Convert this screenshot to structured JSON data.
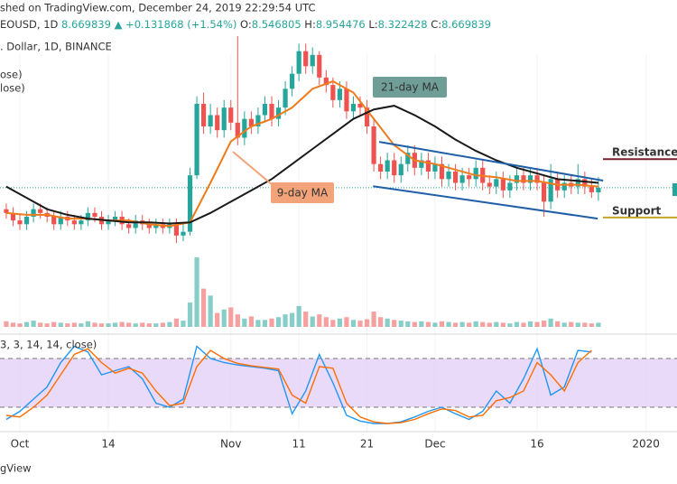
{
  "header": {
    "published": "shed on TradingView.com, December 24, 2019 22:29:54 UTC",
    "symbol": "EOUSD, 1D",
    "change": "▲ +0.131868 (+1.54%)",
    "o": "O:",
    "h": "H:",
    "l": "L:",
    "c": "C:",
    "description": ". Dollar, 1D, BINANCE",
    "indicator_labels": [
      "ose)",
      "lose)"
    ],
    "footer": "gView"
  },
  "chart_data": {
    "type": "candlestick",
    "up_color": "#26a69a",
    "down_color": "#ef5350",
    "xlim": [
      -2.92,
      96.55
    ],
    "ylim": [
      6.7,
      12.7
    ],
    "xticks": [
      {
        "value": 0,
        "label": "Oct"
      },
      {
        "value": 13,
        "label": "14"
      },
      {
        "value": 31,
        "label": "Nov"
      },
      {
        "value": 41,
        "label": "11"
      },
      {
        "value": 51,
        "label": "21"
      },
      {
        "value": 61,
        "label": "Dec"
      },
      {
        "value": 76,
        "label": "16"
      },
      {
        "value": 92,
        "label": "2020"
      }
    ],
    "x": [
      -2,
      -1,
      0,
      1,
      2,
      3,
      4,
      5,
      6,
      7,
      8,
      9,
      10,
      11,
      12,
      13,
      14,
      15,
      16,
      17,
      18,
      19,
      20,
      21,
      22,
      23,
      24,
      25,
      26,
      27,
      28,
      29,
      30,
      31,
      32,
      33,
      34,
      35,
      36,
      37,
      38,
      39,
      40,
      41,
      42,
      43,
      44,
      45,
      46,
      47,
      48,
      49,
      50,
      51,
      52,
      53,
      54,
      55,
      56,
      57,
      58,
      59,
      60,
      61,
      62,
      63,
      64,
      65,
      66,
      67,
      68,
      69,
      70,
      71,
      72,
      73,
      74,
      75,
      76,
      77,
      78,
      79,
      80,
      81,
      82,
      83,
      84,
      85
    ],
    "open": [
      8.1,
      8.0,
      7.8,
      7.7,
      7.9,
      8.1,
      8.0,
      7.9,
      7.7,
      7.9,
      7.8,
      7.7,
      7.8,
      8.0,
      7.9,
      7.7,
      7.8,
      7.9,
      7.7,
      7.6,
      7.8,
      7.7,
      7.6,
      7.7,
      7.6,
      7.7,
      7.4,
      7.5,
      9.0,
      10.9,
      10.3,
      10.6,
      10.2,
      10.8,
      10.4,
      10.0,
      10.5,
      10.3,
      10.6,
      10.9,
      10.5,
      10.8,
      11.3,
      11.7,
      12.3,
      11.9,
      12.2,
      11.6,
      11.4,
      11.0,
      11.3,
      10.7,
      10.9,
      10.8,
      10.3,
      9.3,
      9.1,
      9.4,
      9.0,
      9.3,
      9.6,
      9.2,
      9.4,
      9.1,
      9.3,
      8.9,
      9.1,
      8.8,
      9.0,
      8.9,
      9.2,
      8.8,
      8.7,
      8.9,
      8.6,
      8.8,
      9.0,
      8.8,
      9.0,
      8.8,
      8.3,
      8.9,
      8.6,
      8.8,
      8.7,
      8.9,
      8.7,
      8.546805
    ],
    "high": [
      8.25,
      8.15,
      7.95,
      8.05,
      8.25,
      8.25,
      8.15,
      8.05,
      8.05,
      8.05,
      7.95,
      7.95,
      8.15,
      8.15,
      8.05,
      7.95,
      8.05,
      8.05,
      7.85,
      7.95,
      7.95,
      7.85,
      7.85,
      7.85,
      7.85,
      7.85,
      7.7,
      9.2,
      11.1,
      11.2,
      10.9,
      10.8,
      11.0,
      11.0,
      12.7,
      10.7,
      10.7,
      10.8,
      11.1,
      11.1,
      11.0,
      11.5,
      11.9,
      12.5,
      12.5,
      12.4,
      12.3,
      11.8,
      11.6,
      11.5,
      11.5,
      11.1,
      11.1,
      11.0,
      10.5,
      9.5,
      9.6,
      9.6,
      9.5,
      9.8,
      9.8,
      9.6,
      9.6,
      9.5,
      9.5,
      9.3,
      9.3,
      9.2,
      9.2,
      9.4,
      9.4,
      9.0,
      9.1,
      9.1,
      9.0,
      9.2,
      9.2,
      9.2,
      9.2,
      9.0,
      9.3,
      9.1,
      9.0,
      9.0,
      9.3,
      9.1,
      8.9,
      8.954476
    ],
    "low": [
      7.85,
      7.65,
      7.55,
      7.55,
      7.75,
      7.85,
      7.75,
      7.55,
      7.55,
      7.65,
      7.55,
      7.55,
      7.65,
      7.75,
      7.55,
      7.55,
      7.65,
      7.55,
      7.45,
      7.45,
      7.55,
      7.45,
      7.45,
      7.45,
      7.45,
      7.2,
      7.25,
      7.4,
      8.9,
      10.1,
      10.1,
      10.0,
      10.0,
      10.2,
      9.8,
      9.8,
      10.1,
      10.1,
      10.4,
      10.3,
      10.3,
      10.6,
      11.1,
      11.5,
      11.7,
      11.7,
      11.4,
      11.2,
      10.8,
      10.8,
      10.5,
      10.5,
      10.6,
      10.1,
      9.1,
      8.9,
      8.9,
      8.8,
      8.8,
      9.1,
      9.0,
      9.0,
      8.9,
      8.9,
      8.7,
      8.7,
      8.6,
      8.6,
      8.7,
      8.7,
      8.6,
      8.5,
      8.5,
      8.4,
      8.4,
      8.6,
      8.6,
      8.6,
      8.6,
      7.9,
      8.1,
      8.4,
      8.4,
      8.5,
      8.5,
      8.5,
      8.4,
      8.322428
    ],
    "close": [
      8.0,
      7.8,
      7.7,
      7.9,
      8.1,
      8.0,
      7.9,
      7.7,
      7.9,
      7.8,
      7.7,
      7.8,
      8.0,
      7.9,
      7.7,
      7.8,
      7.9,
      7.7,
      7.6,
      7.8,
      7.7,
      7.6,
      7.7,
      7.6,
      7.7,
      7.4,
      7.5,
      9.0,
      10.9,
      10.3,
      10.6,
      10.2,
      10.8,
      10.4,
      10.0,
      10.5,
      10.3,
      10.6,
      10.9,
      10.5,
      10.8,
      11.3,
      11.7,
      12.3,
      11.9,
      12.2,
      11.6,
      11.4,
      11.0,
      11.3,
      10.7,
      10.9,
      10.8,
      10.3,
      9.3,
      9.1,
      9.4,
      9.0,
      9.3,
      9.6,
      9.2,
      9.4,
      9.1,
      9.3,
      8.9,
      9.1,
      8.8,
      9.0,
      8.9,
      9.2,
      8.8,
      8.7,
      8.9,
      8.6,
      8.8,
      9.0,
      8.8,
      9.0,
      8.8,
      8.3,
      8.9,
      8.6,
      8.8,
      8.7,
      8.9,
      8.7,
      8.55,
      8.669839
    ],
    "series": [
      {
        "color": "#ef7b1c",
        "x": [
          -2,
          1,
          4,
          7,
          10,
          13,
          16,
          19,
          22,
          25,
          28,
          31,
          34,
          37,
          40,
          43,
          46,
          49,
          52,
          55,
          58,
          61,
          64,
          67,
          70,
          73,
          76,
          79,
          82,
          85
        ],
        "values": [
          8.0,
          7.95,
          7.95,
          7.85,
          7.85,
          7.8,
          7.8,
          7.7,
          7.65,
          7.75,
          8.8,
          9.9,
          10.3,
          10.5,
          10.8,
          11.3,
          11.5,
          11.2,
          10.5,
          9.8,
          9.4,
          9.3,
          9.15,
          9.0,
          8.95,
          8.85,
          8.85,
          8.75,
          8.75,
          8.7
        ]
      },
      {
        "color": "#1a1a1a",
        "x": [
          -2,
          1,
          4,
          7,
          10,
          13,
          16,
          19,
          22,
          25,
          28,
          31,
          34,
          37,
          40,
          43,
          46,
          49,
          52,
          55,
          58,
          61,
          64,
          67,
          70,
          73,
          76,
          79,
          82,
          85
        ],
        "values": [
          8.7,
          8.4,
          8.1,
          7.95,
          7.85,
          7.8,
          7.75,
          7.75,
          7.72,
          7.75,
          8.0,
          8.3,
          8.6,
          8.9,
          9.3,
          9.7,
          10.1,
          10.5,
          10.75,
          10.85,
          10.6,
          10.3,
          9.95,
          9.65,
          9.4,
          9.2,
          9.05,
          8.9,
          8.85,
          8.8
        ]
      }
    ],
    "annotations": {
      "ma21": "21-day MA",
      "ma9": "9-day MA",
      "resistance": "Resistance",
      "support": "Support"
    },
    "levels": {
      "resistance": 9.43,
      "support": 7.88
    },
    "channel": {
      "color": "#1f5fa8",
      "upper": {
        "x": [
          52.8,
          85.7
        ],
        "values": [
          9.89,
          8.86
        ]
      },
      "lower": {
        "x": [
          51.9,
          84.9
        ],
        "values": [
          8.71,
          7.85
        ]
      }
    },
    "volume": {
      "ylim": [
        0,
        100
      ],
      "values": [
        8,
        6,
        5,
        7,
        9,
        6,
        5,
        7,
        6,
        5,
        6,
        5,
        8,
        6,
        5,
        5,
        6,
        7,
        6,
        5,
        6,
        5,
        5,
        6,
        7,
        12,
        9,
        35,
        100,
        55,
        45,
        20,
        25,
        28,
        18,
        12,
        15,
        10,
        10,
        12,
        14,
        18,
        20,
        30,
        22,
        15,
        18,
        14,
        10,
        12,
        14,
        10,
        9,
        11,
        22,
        14,
        12,
        10,
        9,
        8,
        7,
        8,
        7,
        6,
        8,
        7,
        6,
        7,
        6,
        8,
        7,
        6,
        7,
        6,
        5,
        7,
        6,
        8,
        7,
        9,
        12,
        8,
        6,
        7,
        6,
        6,
        5,
        6
      ]
    },
    "stoch": {
      "label": "3, 3, 14, 14, close)",
      "ylim": [
        0,
        100
      ],
      "levels": [
        20,
        80
      ],
      "band_color": "#e3cdf7",
      "x": [
        -2,
        0,
        2,
        4,
        6,
        8,
        10,
        12,
        14,
        16,
        18,
        20,
        22,
        24,
        26,
        28,
        30,
        32,
        34,
        36,
        38,
        40,
        42,
        44,
        46,
        48,
        50,
        52,
        54,
        56,
        58,
        60,
        62,
        64,
        66,
        68,
        70,
        72,
        74,
        76,
        78,
        80,
        82,
        84
      ],
      "series": [
        {
          "color": "#2196f3",
          "values": [
            5,
            15,
            30,
            45,
            75,
            95,
            88,
            60,
            65,
            70,
            55,
            25,
            20,
            30,
            95,
            80,
            75,
            72,
            70,
            68,
            65,
            12,
            40,
            85,
            50,
            10,
            3,
            0,
            0,
            2,
            8,
            15,
            20,
            12,
            5,
            15,
            40,
            25,
            55,
            92,
            35,
            45,
            90,
            88
          ]
        },
        {
          "color": "#ff6d00",
          "values": [
            10,
            8,
            20,
            35,
            60,
            85,
            92,
            75,
            62,
            68,
            62,
            40,
            22,
            25,
            70,
            90,
            80,
            74,
            71,
            69,
            67,
            35,
            25,
            70,
            68,
            25,
            8,
            2,
            0,
            1,
            5,
            12,
            18,
            16,
            8,
            10,
            28,
            32,
            40,
            75,
            60,
            40,
            75,
            90
          ]
        }
      ]
    }
  }
}
